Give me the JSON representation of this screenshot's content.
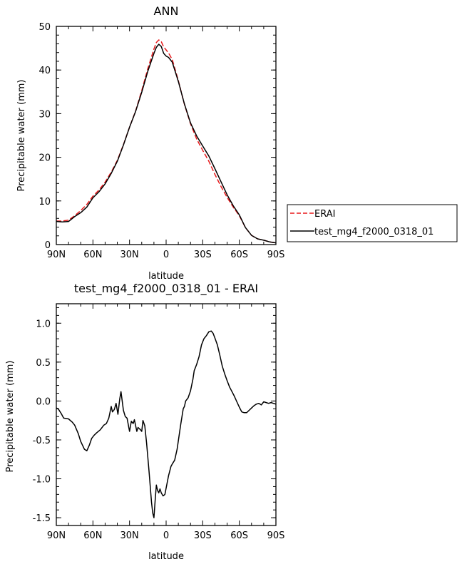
{
  "chart_data": [
    {
      "type": "line",
      "title": "ANN",
      "xlabel": "latitude",
      "ylabel": "Precipitable water (mm)",
      "xlim": [
        90,
        -90
      ],
      "ylim": [
        0,
        50
      ],
      "yticks": [
        "0",
        "10",
        "20",
        "30",
        "40",
        "50"
      ],
      "xticks": [
        {
          "v": 90,
          "label": "90N"
        },
        {
          "v": 60,
          "label": "60N"
        },
        {
          "v": 30,
          "label": "30N"
        },
        {
          "v": 0,
          "label": "0"
        },
        {
          "v": -30,
          "label": "30S"
        },
        {
          "v": -60,
          "label": "60S"
        },
        {
          "v": -90,
          "label": "90S"
        }
      ],
      "grid": false,
      "legend_position": "right",
      "series": [
        {
          "name": "ERAI",
          "color": "#e8191b",
          "dash": true,
          "x": [
            90,
            85,
            80,
            75,
            70,
            65,
            60,
            55,
            50,
            45,
            40,
            35,
            30,
            25,
            20,
            15,
            10,
            8,
            6,
            4,
            2,
            0,
            -2,
            -5,
            -10,
            -15,
            -20,
            -25,
            -30,
            -35,
            -40,
            -45,
            -50,
            -55,
            -60,
            -65,
            -70,
            -75,
            -80,
            -85,
            -90
          ],
          "y": [
            5.4,
            5.4,
            5.6,
            6.6,
            7.8,
            9.2,
            11.1,
            12.5,
            14.3,
            16.6,
            19.3,
            22.9,
            26.9,
            30.6,
            35.3,
            40.3,
            44.8,
            46.3,
            46.9,
            46.5,
            45.3,
            44.6,
            43.9,
            42.4,
            37.6,
            32.1,
            27.7,
            24.2,
            21.6,
            19.1,
            16.1,
            13.3,
            10.8,
            8.6,
            6.6,
            3.9,
            2.1,
            1.3,
            1.0,
            0.6,
            0.4
          ]
        },
        {
          "name": "test_mg4_f2000_0318_01",
          "color": "#000000",
          "dash": false,
          "x": [
            90,
            85,
            80,
            75,
            70,
            65,
            60,
            55,
            50,
            45,
            40,
            35,
            30,
            25,
            20,
            15,
            10,
            8,
            6,
            4,
            2,
            0,
            -2,
            -5,
            -10,
            -15,
            -20,
            -25,
            -30,
            -35,
            -40,
            -45,
            -50,
            -55,
            -60,
            -65,
            -70,
            -75,
            -80,
            -85,
            -90
          ],
          "y": [
            5.3,
            5.2,
            5.3,
            6.4,
            7.3,
            8.6,
            10.7,
            12.1,
            13.9,
            16.3,
            19.1,
            22.8,
            26.9,
            30.5,
            34.9,
            39.7,
            43.8,
            45.2,
            45.9,
            45.4,
            43.8,
            43.2,
            42.9,
            41.8,
            37.4,
            32.2,
            27.9,
            24.9,
            22.6,
            20.3,
            17.4,
            14.4,
            11.4,
            8.9,
            6.8,
            3.9,
            2.1,
            1.3,
            1.0,
            0.6,
            0.4
          ]
        }
      ]
    },
    {
      "type": "line",
      "title": "test_mg4_f2000_0318_01 - ERAI",
      "xlabel": "latitude",
      "ylabel": "Precipitable water (mm)",
      "xlim": [
        90,
        -90
      ],
      "ylim": [
        -1.6,
        1.25
      ],
      "yticks": [
        "-1.5",
        "-1.0",
        "-0.5",
        "0.0",
        "0.5",
        "1.0"
      ],
      "xticks": [
        {
          "v": 90,
          "label": "90N"
        },
        {
          "v": 60,
          "label": "60N"
        },
        {
          "v": 30,
          "label": "30N"
        },
        {
          "v": 0,
          "label": "0"
        },
        {
          "v": -30,
          "label": "30S"
        },
        {
          "v": -60,
          "label": "60S"
        },
        {
          "v": -90,
          "label": "90S"
        }
      ],
      "grid": false,
      "series": [
        {
          "color": "#000000",
          "dash": false,
          "x": [
            90,
            88.5,
            86,
            84,
            80,
            77,
            75,
            72,
            70,
            67,
            65,
            63,
            61,
            59,
            57,
            54,
            51,
            49,
            47,
            45,
            44,
            42.5,
            41,
            39.5,
            38,
            37,
            35,
            33.5,
            32,
            30,
            28.5,
            27,
            26,
            24,
            23,
            21,
            20,
            19,
            17.5,
            16,
            14,
            12,
            11,
            10,
            9,
            8,
            7,
            6,
            5,
            4,
            2.5,
            1,
            -1,
            -2,
            -4,
            -5,
            -7,
            -9,
            -12,
            -14,
            -15,
            -16,
            -18,
            -20,
            -22,
            -23,
            -25,
            -27,
            -29,
            -31,
            -33,
            -35,
            -37,
            -38.5,
            -40,
            -42,
            -44,
            -46,
            -48,
            -50,
            -52,
            -54,
            -56,
            -58,
            -60,
            -62,
            -64,
            -66,
            -68,
            -70,
            -72,
            -74,
            -76,
            -78,
            -80,
            -82,
            -84,
            -86,
            -88,
            -90
          ],
          "y": [
            -0.09,
            -0.1,
            -0.16,
            -0.22,
            -0.23,
            -0.27,
            -0.31,
            -0.42,
            -0.52,
            -0.62,
            -0.64,
            -0.57,
            -0.48,
            -0.44,
            -0.41,
            -0.37,
            -0.31,
            -0.29,
            -0.22,
            -0.07,
            -0.14,
            -0.11,
            -0.03,
            -0.17,
            0.03,
            0.12,
            -0.12,
            -0.2,
            -0.22,
            -0.39,
            -0.26,
            -0.29,
            -0.24,
            -0.39,
            -0.34,
            -0.37,
            -0.39,
            -0.25,
            -0.32,
            -0.54,
            -0.9,
            -1.3,
            -1.44,
            -1.5,
            -1.28,
            -1.08,
            -1.15,
            -1.18,
            -1.13,
            -1.18,
            -1.22,
            -1.2,
            -1.04,
            -0.96,
            -0.84,
            -0.81,
            -0.76,
            -0.62,
            -0.3,
            -0.1,
            -0.07,
            0.0,
            0.04,
            0.13,
            0.28,
            0.39,
            0.47,
            0.57,
            0.72,
            0.8,
            0.84,
            0.89,
            0.9,
            0.87,
            0.81,
            0.72,
            0.59,
            0.45,
            0.35,
            0.26,
            0.18,
            0.12,
            0.06,
            -0.01,
            -0.08,
            -0.14,
            -0.15,
            -0.15,
            -0.12,
            -0.09,
            -0.06,
            -0.04,
            -0.03,
            -0.05,
            -0.01,
            -0.02,
            -0.03,
            -0.02,
            -0.03,
            -0.04
          ]
        }
      ]
    }
  ]
}
